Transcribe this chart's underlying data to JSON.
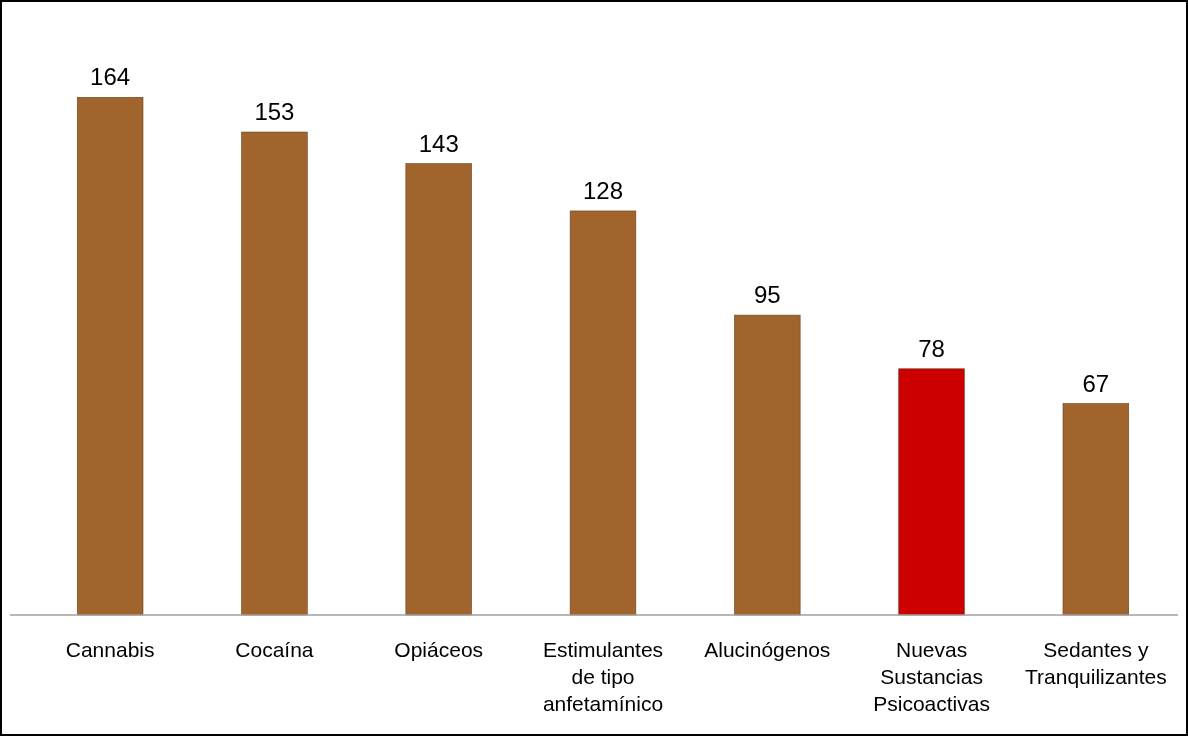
{
  "chart_data": {
    "type": "bar",
    "categories": [
      "Cannabis",
      "Cocaína",
      "Opiáceos",
      "Estimulantes de tipo anfetamínico",
      "Alucinógenos",
      "Nuevas Sustancias Psicoactivas",
      "Sedantes y Tranquilizantes"
    ],
    "values": [
      164,
      153,
      143,
      128,
      95,
      78,
      67
    ],
    "colors": [
      "#a0642c",
      "#a0642c",
      "#a0642c",
      "#a0642c",
      "#a0642c",
      "#cc0000",
      "#a0642c"
    ],
    "data_labels": true
  }
}
